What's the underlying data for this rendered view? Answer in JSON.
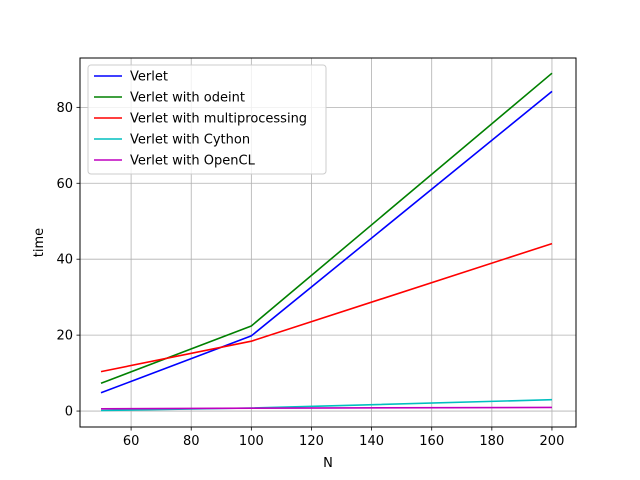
{
  "chart_data": {
    "type": "line",
    "xlabel": "N",
    "ylabel": "time",
    "xlim": [
      43,
      208
    ],
    "ylim": [
      -4.2,
      93
    ],
    "x_ticks": [
      60,
      80,
      100,
      120,
      140,
      160,
      180,
      200
    ],
    "y_ticks": [
      0,
      20,
      40,
      60,
      80
    ],
    "grid": true,
    "legend_position": "upper-left",
    "x": [
      50,
      100,
      200
    ],
    "series": [
      {
        "name": "Verlet",
        "color": "#0000ff",
        "values": [
          4.8,
          19.8,
          84.2
        ]
      },
      {
        "name": "Verlet with odeint",
        "color": "#008000",
        "values": [
          7.3,
          22.4,
          89.0
        ]
      },
      {
        "name": "Verlet with multiprocessing",
        "color": "#ff0000",
        "values": [
          10.4,
          18.4,
          44.1
        ]
      },
      {
        "name": "Verlet with Cython",
        "color": "#00bfbf",
        "values": [
          0.15,
          0.8,
          3.0
        ]
      },
      {
        "name": "Verlet with OpenCL",
        "color": "#bf00bf",
        "values": [
          0.6,
          0.75,
          0.95
        ]
      }
    ]
  }
}
